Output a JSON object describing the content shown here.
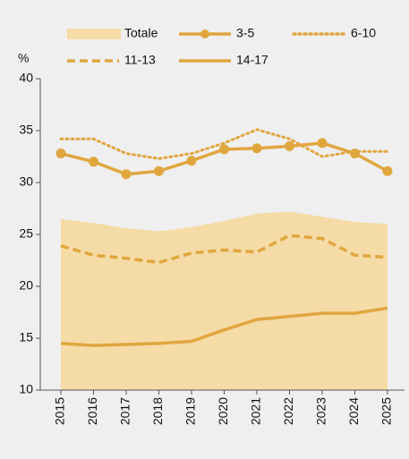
{
  "chart_data": {
    "type": "line",
    "y_unit_label": "%",
    "categories": [
      "2015",
      "2016",
      "2017",
      "2018",
      "2019",
      "2020",
      "2021",
      "2022",
      "2023",
      "2024",
      "2025"
    ],
    "series": [
      {
        "name": "Totale",
        "style": "area",
        "color": "#f5dba6",
        "values": [
          26.5,
          26.1,
          25.6,
          25.3,
          25.7,
          26.3,
          27.0,
          27.2,
          26.7,
          26.2,
          26.0
        ]
      },
      {
        "name": "3-5",
        "style": "solid-marker",
        "color": "#e0a63e",
        "values": [
          32.8,
          32.0,
          30.8,
          31.1,
          32.1,
          33.2,
          33.3,
          33.5,
          33.8,
          32.8,
          31.1
        ]
      },
      {
        "name": "6-10",
        "style": "dotted",
        "color": "#e0a63e",
        "values": [
          34.2,
          34.2,
          32.8,
          32.3,
          32.8,
          33.8,
          35.1,
          34.2,
          32.5,
          33.0,
          33.0
        ]
      },
      {
        "name": "11-13",
        "style": "dashed",
        "color": "#e0a63e",
        "values": [
          23.9,
          23.0,
          22.7,
          22.3,
          23.2,
          23.5,
          23.3,
          24.9,
          24.6,
          23.0,
          22.8
        ]
      },
      {
        "name": "14-17",
        "style": "solid",
        "color": "#e0a63e",
        "values": [
          14.5,
          14.3,
          14.4,
          14.5,
          14.7,
          15.8,
          16.8,
          17.1,
          17.4,
          17.4,
          17.9
        ]
      }
    ],
    "ylim": [
      10,
      40
    ],
    "yticks": [
      10,
      15,
      20,
      25,
      30,
      35,
      40
    ],
    "grid": false
  }
}
